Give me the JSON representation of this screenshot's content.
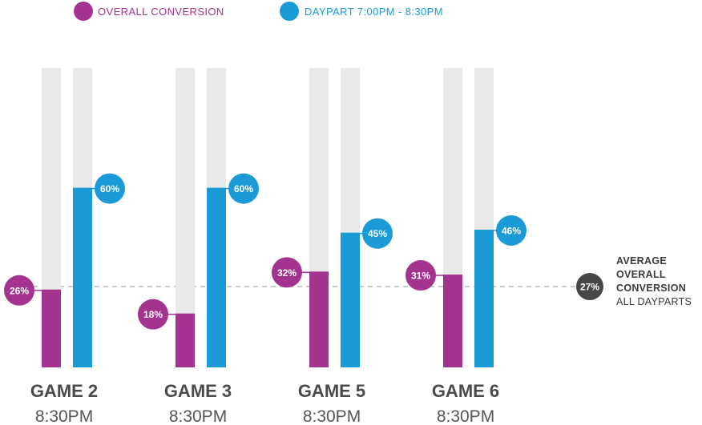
{
  "chart_data": {
    "type": "bar",
    "categories": [
      "GAME 2",
      "GAME 3",
      "GAME 5",
      "GAME 6"
    ],
    "subcategories": [
      "8:30PM",
      "8:30PM",
      "8:30PM",
      "8:30PM"
    ],
    "series": [
      {
        "name": "OVERALL CONVERSION",
        "values": [
          26,
          18,
          32,
          31
        ],
        "labels": [
          "26%",
          "18%",
          "32%",
          "31%"
        ],
        "color": "#a3338f"
      },
      {
        "name": "DAYPART 7:00PM - 8:30PM",
        "values": [
          60,
          60,
          45,
          46
        ],
        "labels": [
          "60%",
          "60%",
          "45%",
          "46%"
        ],
        "color": "#1a9ad6"
      }
    ],
    "ylim": [
      0,
      100
    ],
    "track_color": "#e9e9ea",
    "reference_line": {
      "value": 27,
      "label": "27%",
      "color": "#474747",
      "caption_bold": [
        "AVERAGE",
        "OVERALL",
        "CONVERSION"
      ],
      "caption": "ALL DAYPARTS"
    },
    "legend_position": "top-left"
  }
}
